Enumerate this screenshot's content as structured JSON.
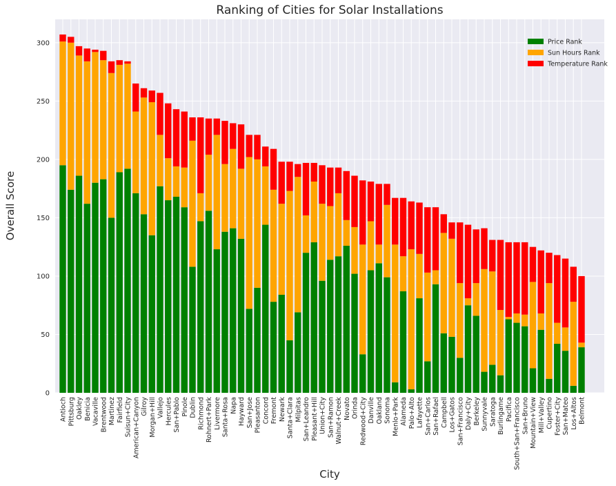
{
  "chart_data": {
    "type": "bar",
    "stacked": true,
    "title": "Ranking of Cities for Solar Installations",
    "xlabel": "City",
    "ylabel": "Overall Score",
    "ylim": [
      0,
      320
    ],
    "yticks": [
      0,
      50,
      100,
      150,
      200,
      250,
      300
    ],
    "grid": true,
    "legend_position": "top-right",
    "categories": [
      "Antioch",
      "Pittsburg",
      "Oakley",
      "Benicia",
      "Vacaville",
      "Brentwood",
      "Martinez",
      "Fairfield",
      "Suisun+City",
      "American+Canyon",
      "Gilroy",
      "Morgan+Hill",
      "Vallejo",
      "Hercules",
      "San+Pablo",
      "Pinole",
      "Dublin",
      "Richmond",
      "Rohnert+Park",
      "Livermore",
      "Santa+Rosa",
      "Napa",
      "Hayward",
      "San+Jose",
      "Pleasanton",
      "Concord",
      "Fremont",
      "Newark",
      "Santa+Clara",
      "Milpitas",
      "San+Leandro",
      "Pleasant+Hill",
      "Union+City",
      "San+Ramon",
      "Walnut+Creek",
      "Novato",
      "Orinda",
      "Redwood+City",
      "Danville",
      "Oakland",
      "Sonoma",
      "Menlo+Park",
      "Alameda",
      "Palo+Alto",
      "Lafayette",
      "San+Carlos",
      "San+Rafael",
      "Campbell",
      "Los+Gatos",
      "San+Francisco",
      "Daly+City",
      "Berkeley",
      "Sunnyvale",
      "Saratoga",
      "Burlingame",
      "Pacifica",
      "South+San+Francisco",
      "San+Bruno",
      "Mountain+View",
      "Mill+Valley",
      "Cupertino",
      "Foster+City",
      "San+Mateo",
      "Los+Altos",
      "Belmont"
    ],
    "series": [
      {
        "name": "Price Rank",
        "color": "#008000",
        "values": [
          195,
          174,
          186,
          162,
          180,
          183,
          150,
          189,
          192,
          171,
          153,
          135,
          177,
          165,
          168,
          159,
          108,
          147,
          156,
          123,
          138,
          141,
          132,
          72,
          90,
          144,
          78,
          84,
          45,
          69,
          120,
          129,
          96,
          114,
          117,
          126,
          102,
          33,
          105,
          111,
          99,
          9,
          87,
          3,
          81,
          27,
          93,
          51,
          48,
          30,
          75,
          66,
          18,
          24,
          15,
          63,
          60,
          57,
          21,
          54,
          12,
          42,
          36,
          6,
          39
        ]
      },
      {
        "name": "Sun Hours Rank",
        "color": "#FFA500",
        "values": [
          106,
          126,
          103,
          122,
          112,
          102,
          124,
          92,
          90,
          70,
          100,
          114,
          44,
          36,
          26,
          34,
          108,
          24,
          48,
          98,
          58,
          68,
          60,
          130,
          110,
          50,
          96,
          78,
          128,
          116,
          32,
          52,
          66,
          46,
          54,
          22,
          40,
          94,
          42,
          16,
          62,
          118,
          30,
          120,
          38,
          76,
          12,
          86,
          84,
          64,
          6,
          28,
          88,
          80,
          56,
          2,
          8,
          10,
          74,
          14,
          82,
          18,
          20,
          72,
          4
        ]
      },
      {
        "name": "Temperature Rank",
        "color": "#FF0000",
        "values": [
          6,
          5,
          8,
          11,
          2,
          8,
          10,
          4,
          2,
          24,
          8,
          10,
          36,
          47,
          49,
          48,
          20,
          65,
          31,
          14,
          37,
          22,
          38,
          19,
          21,
          17,
          35,
          36,
          25,
          11,
          45,
          16,
          33,
          33,
          22,
          42,
          44,
          55,
          34,
          52,
          18,
          40,
          50,
          41,
          44,
          56,
          54,
          16,
          14,
          52,
          63,
          46,
          35,
          27,
          60,
          64,
          61,
          62,
          30,
          54,
          26,
          58,
          59,
          30,
          57
        ]
      }
    ]
  }
}
